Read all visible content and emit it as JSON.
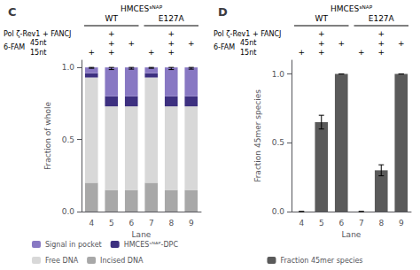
{
  "chart_data": [
    {
      "type": "bar",
      "title": "C",
      "subtitle": "HMCESˢᴺᴬᴾ",
      "categories": [
        4,
        5,
        6,
        7,
        8,
        9
      ],
      "stacked": true,
      "series": [
        {
          "name": "Incised DNA",
          "color": "#a8a8a8",
          "values": [
            0.2,
            0.15,
            0.15,
            0.2,
            0.15,
            0.15
          ]
        },
        {
          "name": "Free DNA",
          "color": "#d8d8d8",
          "values": [
            0.73,
            0.58,
            0.58,
            0.73,
            0.58,
            0.58
          ]
        },
        {
          "name": "HMCESˢᴺᴬᴾ-DPC",
          "color": "#3d3080",
          "values": [
            0.03,
            0.07,
            0.07,
            0.03,
            0.07,
            0.07
          ]
        },
        {
          "name": "Signal in pocket",
          "color": "#8878c3",
          "values": [
            0.04,
            0.2,
            0.2,
            0.04,
            0.2,
            0.2
          ]
        }
      ],
      "error_low": [
        0.994,
        0.985,
        0.988,
        0.994,
        0.985,
        0.988
      ],
      "error_high": [
        1.0,
        1.0,
        1.0,
        1.0,
        1.0,
        1.0
      ],
      "xlabel": "Lane",
      "ylabel": "Fraction of whole",
      "ylim": [
        0.0,
        1.05
      ],
      "yticks": [
        {
          "value": 0.0,
          "label": "0.0"
        },
        0.5,
        {
          "value": 1.0,
          "label": "1.0"
        }
      ],
      "grid": false,
      "legend": "bottom",
      "annotations": {
        "group_labels": [
          "WT",
          "WT",
          "WT",
          "E127A",
          "E127A",
          "E127A"
        ],
        "conditions": [
          {
            "label": "Pol ζ-Rev1 + FANCJ",
            "marks": [
              null,
              "+",
              null,
              null,
              "+",
              null
            ]
          },
          {
            "label": "45nt",
            "group": "6-FAM",
            "marks": [
              null,
              "+",
              "+",
              null,
              "+",
              "+"
            ]
          },
          {
            "label": "15nt",
            "group": "6-FAM",
            "marks": [
              "+",
              "+",
              null,
              "+",
              "+",
              null
            ]
          }
        ]
      }
    },
    {
      "type": "bar",
      "title": "D",
      "subtitle": "HMCESˢᴺᴬᴾ",
      "categories": [
        4,
        5,
        6,
        7,
        8,
        9
      ],
      "series": [
        {
          "name": "Fraction 45mer species",
          "color": "#5a5a5a",
          "values": [
            0.0,
            0.65,
            1.0,
            0.0,
            0.3,
            1.0
          ],
          "errors": [
            0.0,
            0.05,
            0.0,
            0.0,
            0.04,
            0.0
          ]
        }
      ],
      "xlabel": "Lane",
      "ylabel": "Fraction 45mer species",
      "ylim": [
        0.0,
        1.1
      ],
      "yticks": [
        {
          "value": 0.0,
          "label": "0.0"
        },
        0.5,
        {
          "value": 1.0,
          "label": "1.0"
        }
      ],
      "grid": false,
      "legend": "bottom",
      "annotations": {
        "group_labels": [
          "WT",
          "WT",
          "WT",
          "E127A",
          "E127A",
          "E127A"
        ],
        "conditions": [
          {
            "label": "Pol ζ-Rev1 + FANCJ",
            "marks": [
              null,
              "+",
              null,
              null,
              "+",
              null
            ]
          },
          {
            "label": "45nt",
            "group": "6-FAM",
            "marks": [
              null,
              "+",
              "+",
              null,
              "+",
              "+"
            ]
          },
          {
            "label": "15nt",
            "group": "6-FAM",
            "marks": [
              "+",
              "+",
              null,
              "+",
              "+",
              null
            ]
          }
        ]
      }
    }
  ]
}
